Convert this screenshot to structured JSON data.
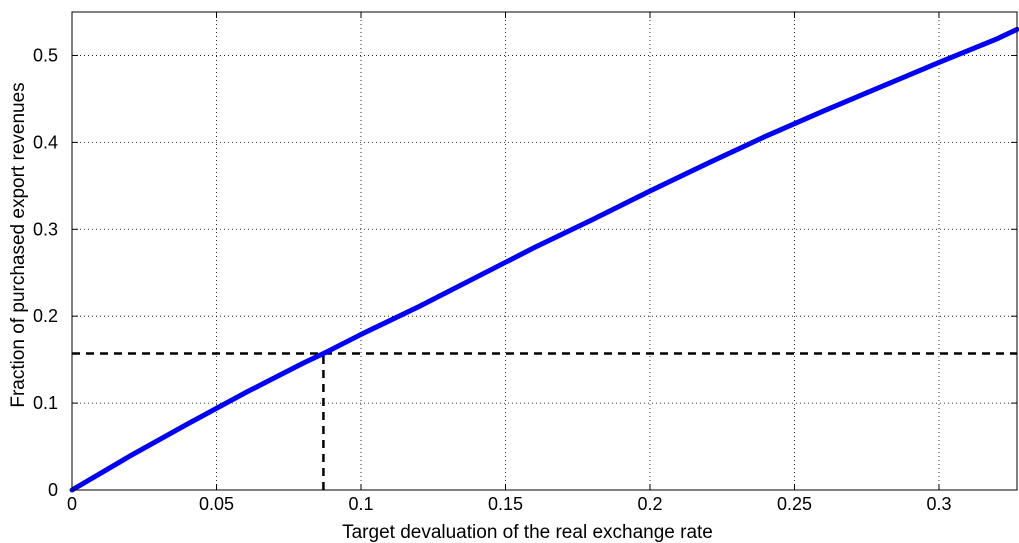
{
  "chart_data": {
    "type": "line",
    "xlabel": "Target devaluation of the real exchange rate",
    "ylabel": "Fraction of purchased export revenues",
    "xlim": [
      0,
      0.327
    ],
    "ylim": [
      0,
      0.55
    ],
    "xticks": [
      0,
      0.05,
      0.1,
      0.15,
      0.2,
      0.25,
      0.3
    ],
    "xtick_labels": [
      "0",
      "0.05",
      "0.1",
      "0.15",
      "0.2",
      "0.25",
      "0.3"
    ],
    "yticks": [
      0,
      0.1,
      0.2,
      0.3,
      0.4,
      0.5
    ],
    "ytick_labels": [
      "0",
      "0.1",
      "0.2",
      "0.3",
      "0.4",
      "0.5"
    ],
    "grid": true,
    "series": [
      {
        "color": "#0000ff",
        "style": "solid",
        "x": [
          0,
          0.02,
          0.04,
          0.06,
          0.08,
          0.087,
          0.1,
          0.12,
          0.14,
          0.16,
          0.18,
          0.2,
          0.22,
          0.24,
          0.26,
          0.28,
          0.3,
          0.32,
          0.327
        ],
        "y": [
          0,
          0.039,
          0.076,
          0.112,
          0.146,
          0.157,
          0.179,
          0.211,
          0.245,
          0.279,
          0.311,
          0.344,
          0.376,
          0.407,
          0.436,
          0.464,
          0.492,
          0.519,
          0.53
        ]
      }
    ],
    "reference_lines": [
      {
        "orientation": "horizontal",
        "y": 0.157,
        "x_from": 0,
        "x_to": 0.327,
        "color": "#000000",
        "style": "dashed"
      },
      {
        "orientation": "vertical",
        "x": 0.087,
        "y_from": 0,
        "y_to": 0.157,
        "color": "#000000",
        "style": "dashed"
      }
    ]
  }
}
